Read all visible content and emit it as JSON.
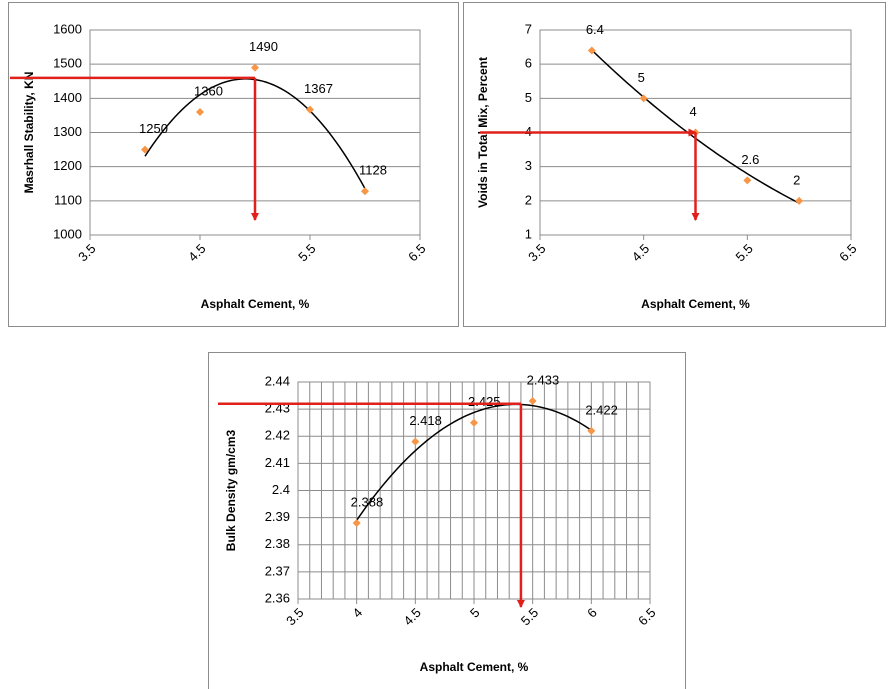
{
  "chart_data": [
    {
      "type": "scatter",
      "x_label": "Asphalt Cement, %",
      "y_label": "Masrhall Stability, KN",
      "x": [
        4,
        4.5,
        5,
        5.5,
        6
      ],
      "values": [
        1250,
        1360,
        1490,
        1367,
        1128
      ],
      "xlim": [
        3.5,
        6.5
      ],
      "xticks": [
        3.5,
        4.5,
        5.5,
        6.5
      ],
      "ylim": [
        1000,
        1600
      ],
      "yticks": [
        1000,
        1100,
        1200,
        1300,
        1400,
        1500,
        1600
      ],
      "grid": true,
      "minor_grid": false,
      "color": "#f79646",
      "trendline_order": 2,
      "reference": {
        "x": 5,
        "y": 1460
      },
      "reference_color": "#e0201b"
    },
    {
      "type": "scatter",
      "x_label": "Asphalt Cement, %",
      "y_label": "Voids in Total Mix, Percent",
      "x": [
        4,
        4.5,
        5,
        5.5,
        6
      ],
      "values": [
        6.4,
        5,
        4,
        2.6,
        2
      ],
      "xlim": [
        3.5,
        6.5
      ],
      "xticks": [
        3.5,
        4.5,
        5.5,
        6.5
      ],
      "ylim": [
        1,
        7
      ],
      "yticks": [
        1,
        2,
        3,
        4,
        5,
        6,
        7
      ],
      "grid": true,
      "minor_grid": false,
      "color": "#f79646",
      "trendline_order": 2,
      "reference": {
        "x": 5,
        "y": 4
      },
      "reference_color": "#e0201b"
    },
    {
      "type": "scatter",
      "x_label": "Asphalt Cement, %",
      "y_label": "Bulk Density  gm/cm3",
      "x": [
        4,
        4.5,
        5,
        5.5,
        6
      ],
      "values": [
        2.388,
        2.418,
        2.425,
        2.433,
        2.422
      ],
      "xlim": [
        3.5,
        6.5
      ],
      "xticks": [
        3.5,
        4,
        4.5,
        5,
        5.5,
        6,
        6.5
      ],
      "ylim": [
        2.36,
        2.44
      ],
      "yticks": [
        2.36,
        2.37,
        2.38,
        2.39,
        2.4,
        2.41,
        2.42,
        2.43,
        2.44
      ],
      "grid": true,
      "minor_grid": true,
      "color": "#f79646",
      "trendline_order": 2,
      "reference": {
        "x": 5.4,
        "y": 2.432
      },
      "reference_color": "#e0201b"
    }
  ]
}
